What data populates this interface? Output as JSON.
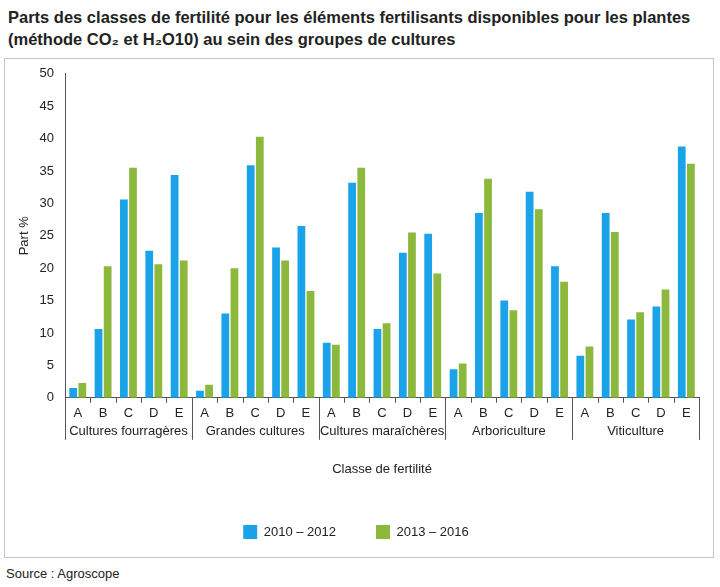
{
  "chart_data": {
    "type": "bar",
    "title": "Parts des classes de fertilité pour les éléments fertilisants disponibles pour les plantes (méthode CO₂ et H₂O10) au sein des groupes de cultures",
    "source": "Source : Agroscope",
    "x_label": "Classe de fertilité",
    "y_label": "Part %",
    "groups": [
      {
        "name": "Cultures fourragères",
        "categories": [
          "A",
          "B",
          "C",
          "D",
          "E"
        ]
      },
      {
        "name": "Grandes cultures",
        "categories": [
          "A",
          "B",
          "C",
          "D",
          "E"
        ]
      },
      {
        "name": "Cultures maraîchères",
        "categories": [
          "A",
          "B",
          "C",
          "D",
          "E"
        ]
      },
      {
        "name": "Arboriculture",
        "categories": [
          "A",
          "B",
          "C",
          "D",
          "E"
        ]
      },
      {
        "name": "Viticulture",
        "categories": [
          "A",
          "B",
          "C",
          "D",
          "E"
        ]
      }
    ],
    "series": [
      {
        "name": "2010 – 2012",
        "color": "#1aa3e8",
        "values": [
          1.5,
          10.6,
          30.6,
          22.7,
          34.4,
          1.1,
          13.0,
          35.9,
          23.2,
          26.5,
          8.5,
          33.2,
          10.6,
          22.4,
          25.3,
          4.4,
          28.5,
          15.0,
          31.8,
          20.3,
          6.5,
          28.5,
          12.1,
          14.1,
          38.8
        ]
      },
      {
        "name": "2013 – 2016",
        "color": "#8cb83c",
        "values": [
          2.3,
          20.3,
          35.5,
          20.6,
          21.2,
          2.0,
          20.0,
          40.3,
          21.2,
          16.5,
          8.2,
          35.5,
          11.5,
          25.5,
          19.2,
          5.3,
          33.8,
          13.5,
          29.1,
          17.9,
          7.9,
          25.6,
          13.2,
          16.7,
          36.1
        ]
      }
    ],
    "ylim": [
      0,
      50
    ],
    "yticks": [
      0,
      5,
      10,
      15,
      20,
      25,
      30,
      35,
      40,
      45,
      50
    ],
    "grid": false,
    "legend": "bottom"
  }
}
